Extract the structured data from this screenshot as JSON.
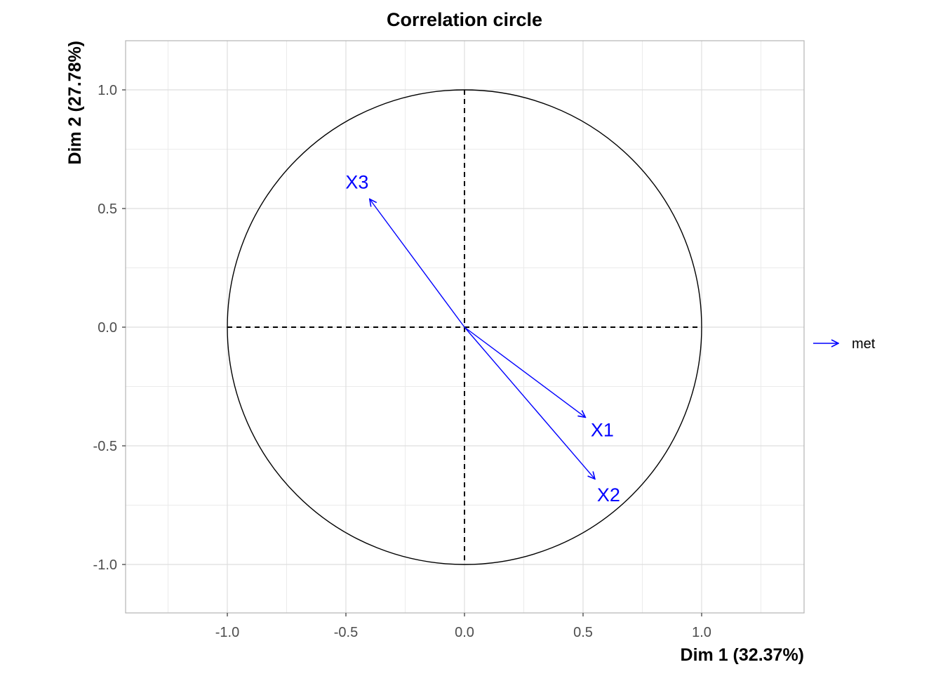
{
  "chart_data": {
    "type": "scatter",
    "subtype": "correlation-circle",
    "title": "Correlation circle",
    "xlabel": "Dim 1 (32.37%)",
    "ylabel": "Dim 2 (27.78%)",
    "xlim": [
      -1.43,
      1.43
    ],
    "ylim": [
      -1.21,
      1.21
    ],
    "x_ticks": [
      -1.0,
      -0.5,
      0.0,
      0.5,
      1.0
    ],
    "x_tick_labels": [
      "-1.0",
      "-0.5",
      "0.0",
      "0.5",
      "1.0"
    ],
    "y_ticks": [
      -1.0,
      -0.5,
      0.0,
      0.5,
      1.0
    ],
    "y_tick_labels": [
      "-1.0",
      "-0.5",
      "0.0",
      "0.5",
      "1.0"
    ],
    "grid": true,
    "circle_radius": 1.0,
    "reference_lines": [
      0,
      0
    ],
    "series": [
      {
        "name": "met",
        "color": "#0000ff",
        "vectors": [
          {
            "label": "X1",
            "x": 0.51,
            "y": -0.38
          },
          {
            "label": "X2",
            "x": 0.55,
            "y": -0.64
          },
          {
            "label": "X3",
            "x": -0.4,
            "y": 0.54
          }
        ]
      }
    ],
    "legend": {
      "position": "right",
      "entries": [
        "met"
      ]
    }
  }
}
